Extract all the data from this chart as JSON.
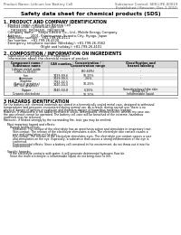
{
  "header_left": "Product Name: Lithium Ion Battery Cell",
  "header_right_line1": "Substance Control: SER-LIFE-00019",
  "header_right_line2": "Established / Revision: Dec.1.2010",
  "title": "Safety data sheet for chemical products (SDS)",
  "section1_title": "1. PRODUCT AND COMPANY IDENTIFICATION",
  "section1_lines": [
    "  · Product name: Lithium Ion Battery Cell",
    "  · Product code: Cylindrical-type cell",
    "       DR18650J, DR18650L, DR18650A",
    "  · Company name:    Sanyo Electric Co., Ltd., Mobile Energy Company",
    "  · Address:         2001, Kamimuraea, Sumoto-City, Hyogo, Japan",
    "  · Telephone number:   +81-799-26-4111",
    "  · Fax number:   +81-799-26-4120",
    "  · Emergency telephone number (Weekday): +81-799-26-3562",
    "                                    (Night and holiday): +81-799-26-4101"
  ],
  "section2_title": "2. COMPOSITION / INFORMATION ON INGREDIENTS",
  "section2_intro": "  · Substance or preparation: Preparation",
  "section2_sub": "  · Information about the chemical nature of product:",
  "table_headers": [
    "Component name /\nSubstance name",
    "CAS number",
    "Concentration /\nConcentration range",
    "Classification and\nhazard labeling"
  ],
  "table_rows": [
    [
      "Lithium nickel oxide\n(LiMn-Co-Ni)O2)",
      "-",
      "(30-60%)",
      "-"
    ],
    [
      "Iron",
      "7439-89-6",
      "10-25%",
      "-"
    ],
    [
      "Aluminum",
      "7429-90-5",
      "2-6%",
      "-"
    ],
    [
      "Graphite\n(Ratio in graphite)\n(All %in graphite)",
      "7782-42-5\n7440-44-0",
      "10-25%",
      "-"
    ],
    [
      "Copper",
      "7440-50-8",
      "5-15%",
      "Sensitization of the skin\ngroup No.2"
    ],
    [
      "Organic electrolyte",
      "-",
      "10-20%",
      "Inflammable liquid"
    ]
  ],
  "section3_title": "3 HAZARDS IDENTIFICATION",
  "section3_body": [
    "For the battery cell, chemical materials are stored in a hermetically sealed metal case, designed to withstand",
    "temperatures and pressures encountered during normal use. As a result, during normal use, there is no",
    "physical danger of ignition or explosion and therefore danger of hazardous materials leakage.",
    "However, if exposed to a fire added mechanical shock, decomposed, emitted electric wheras my case use,",
    "the gas release cannot be operated. The battery cell case will be breached of the extreme, hazardous",
    "materials may be released.",
    "Moreover, if heated strongly by the surrounding fire, toxic gas may be emitted.",
    "",
    "  · Most important hazard and effects:",
    "       Human health effects:",
    "          Inhalation: The release of the electrolyte has an anesthesia action and stimulates in respiratory tract.",
    "          Skin contact: The release of the electrolyte stimulates a skin. The electrolyte skin contact causes a",
    "          sore and stimulation on the skin.",
    "          Eye contact: The release of the electrolyte stimulates eyes. The electrolyte eye contact causes a sore",
    "          and stimulation on the eye. Especially, a substance that causes a strong inflammation of the eye is",
    "          confirmed.",
    "          Environmental effects: Since a battery cell remained in the environment, do not throw out it into the",
    "          environment.",
    "",
    "  · Specific hazards:",
    "       If the electrolyte contacts with water, it will generate detrimental hydrogen fluoride.",
    "       Since the main electrolyte is inflammable liquid, do not bring close to fire."
  ],
  "bg_color": "#ffffff",
  "text_color": "#000000",
  "table_header_bg": "#d8d8d8",
  "table_row_bg1": "#f0f0f0",
  "table_row_bg2": "#ffffff",
  "line_color": "#888888",
  "header_text_color": "#555555"
}
